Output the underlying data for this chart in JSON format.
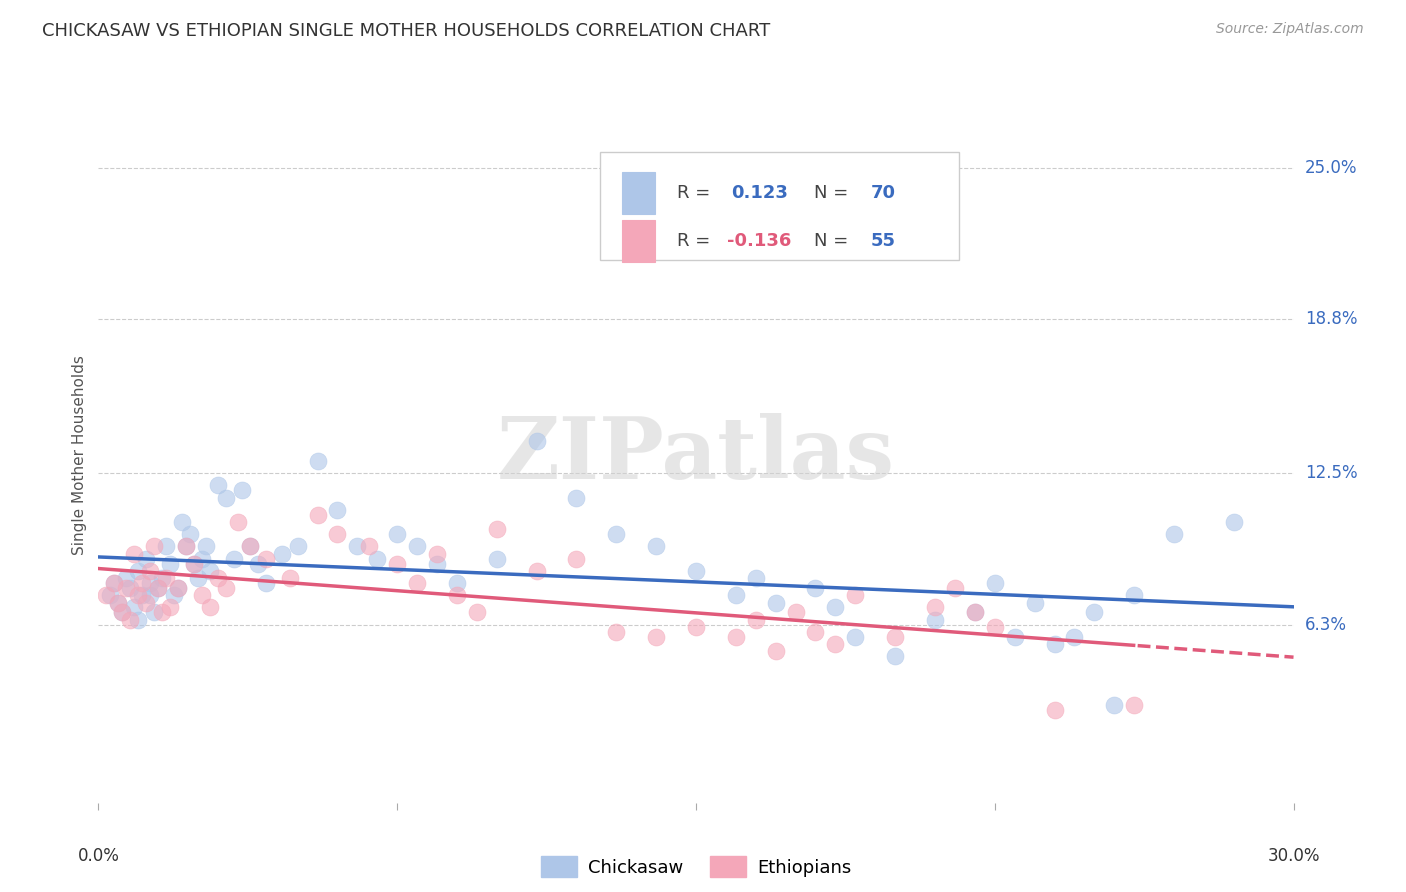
{
  "title": "CHICKASAW VS ETHIOPIAN SINGLE MOTHER HOUSEHOLDS CORRELATION CHART",
  "source": "Source: ZipAtlas.com",
  "ylabel": "Single Mother Households",
  "ytick_labels": [
    "6.3%",
    "12.5%",
    "18.8%",
    "25.0%"
  ],
  "ytick_values": [
    0.063,
    0.125,
    0.188,
    0.25
  ],
  "xlim": [
    0.0,
    0.3
  ],
  "ylim": [
    -0.01,
    0.275
  ],
  "chickasaw_R": "0.123",
  "chickasaw_N": "70",
  "ethiopian_R": "-0.136",
  "ethiopian_N": "55",
  "chickasaw_color": "#aec6e8",
  "ethiopian_color": "#f4a7b9",
  "chickasaw_line_color": "#3a6bbf",
  "ethiopian_line_color": "#e05a7a",
  "legend_label_1": "Chickasaw",
  "legend_label_2": "Ethiopians",
  "watermark": "ZIPatlas",
  "chickasaw_x": [
    0.003,
    0.004,
    0.005,
    0.006,
    0.007,
    0.008,
    0.009,
    0.01,
    0.01,
    0.011,
    0.012,
    0.013,
    0.013,
    0.014,
    0.015,
    0.016,
    0.017,
    0.018,
    0.019,
    0.02,
    0.021,
    0.022,
    0.023,
    0.024,
    0.025,
    0.026,
    0.027,
    0.028,
    0.03,
    0.032,
    0.034,
    0.036,
    0.038,
    0.04,
    0.042,
    0.046,
    0.05,
    0.055,
    0.06,
    0.065,
    0.07,
    0.075,
    0.08,
    0.085,
    0.09,
    0.1,
    0.11,
    0.12,
    0.13,
    0.14,
    0.15,
    0.16,
    0.165,
    0.17,
    0.18,
    0.185,
    0.19,
    0.2,
    0.21,
    0.22,
    0.225,
    0.23,
    0.235,
    0.24,
    0.245,
    0.25,
    0.255,
    0.26,
    0.27,
    0.285
  ],
  "chickasaw_y": [
    0.075,
    0.08,
    0.072,
    0.068,
    0.082,
    0.078,
    0.07,
    0.065,
    0.085,
    0.075,
    0.09,
    0.08,
    0.075,
    0.068,
    0.078,
    0.082,
    0.095,
    0.088,
    0.075,
    0.078,
    0.105,
    0.095,
    0.1,
    0.088,
    0.082,
    0.09,
    0.095,
    0.085,
    0.12,
    0.115,
    0.09,
    0.118,
    0.095,
    0.088,
    0.08,
    0.092,
    0.095,
    0.13,
    0.11,
    0.095,
    0.09,
    0.1,
    0.095,
    0.088,
    0.08,
    0.09,
    0.138,
    0.115,
    0.1,
    0.095,
    0.085,
    0.075,
    0.082,
    0.072,
    0.078,
    0.07,
    0.058,
    0.05,
    0.065,
    0.068,
    0.08,
    0.058,
    0.072,
    0.055,
    0.058,
    0.068,
    0.03,
    0.075,
    0.1,
    0.105
  ],
  "ethiopian_x": [
    0.002,
    0.004,
    0.005,
    0.006,
    0.007,
    0.008,
    0.009,
    0.01,
    0.011,
    0.012,
    0.013,
    0.014,
    0.015,
    0.016,
    0.017,
    0.018,
    0.02,
    0.022,
    0.024,
    0.026,
    0.028,
    0.03,
    0.032,
    0.035,
    0.038,
    0.042,
    0.048,
    0.055,
    0.06,
    0.068,
    0.075,
    0.08,
    0.085,
    0.09,
    0.095,
    0.1,
    0.11,
    0.12,
    0.13,
    0.14,
    0.15,
    0.16,
    0.165,
    0.17,
    0.175,
    0.18,
    0.185,
    0.19,
    0.2,
    0.21,
    0.215,
    0.22,
    0.225,
    0.24,
    0.26
  ],
  "ethiopian_y": [
    0.075,
    0.08,
    0.072,
    0.068,
    0.078,
    0.065,
    0.092,
    0.075,
    0.08,
    0.072,
    0.085,
    0.095,
    0.078,
    0.068,
    0.082,
    0.07,
    0.078,
    0.095,
    0.088,
    0.075,
    0.07,
    0.082,
    0.078,
    0.105,
    0.095,
    0.09,
    0.082,
    0.108,
    0.1,
    0.095,
    0.088,
    0.08,
    0.092,
    0.075,
    0.068,
    0.102,
    0.085,
    0.09,
    0.06,
    0.058,
    0.062,
    0.058,
    0.065,
    0.052,
    0.068,
    0.06,
    0.055,
    0.075,
    0.058,
    0.07,
    0.078,
    0.068,
    0.062,
    0.028,
    0.03
  ]
}
